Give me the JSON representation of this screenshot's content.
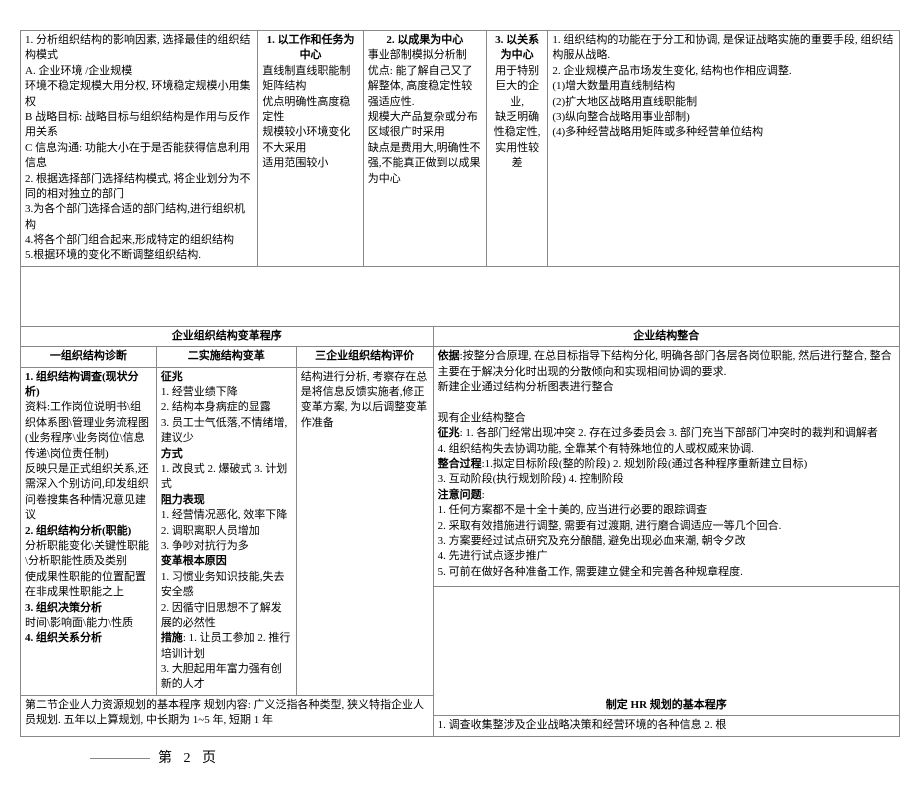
{
  "row1": {
    "c1": "1. 分析组织结构的影响因素, 选择最佳的组织结构模式\n    A. 企业环境   /企业规模\n环境不稳定规模大用分权, 环境稳定规模小用集权\nB 战略目标: 战略目标与组织结构是作用与反作用关系\nC 信息沟通: 功能大小在于是否能获得信息利用信息\n2. 根据选择部门选择结构模式, 将企业划分为不同的相对独立的部门\n3.为各个部门选择合适的部门结构,进行组织机构\n4.将各个部门组合起来,形成特定的组织结构\n5.根据环境的变化不断调整组织结构.",
    "c2_title": "1. 以工作和任务为中心",
    "c2_body": "直线制直线职能制矩阵结构\n优点明确性高度稳定性\n规模较小环境变化不大采用\n适用范围较小",
    "c3_title": "2. 以成果为中心",
    "c3_body": "事业部制模拟分析制\n优点: 能了解自己又了解整体, 高度稳定性较强适应性.\n规模大产品复杂或分布区域很广时采用\n缺点是费用大,明确性不强,不能真正做到以成果为中心",
    "c4_title": "3. 以关系为中心",
    "c4_body": "用于特别巨大的企业,\n缺乏明确性稳定性,实用性较差",
    "c5": "1. 组织结构的功能在于分工和协调, 是保证战略实施的重要手段, 组织结构服从战略.\n2. 企业规模产品市场发生变化, 结构也作相应调整.\n(1)增大数量用直线制结构\n(2)扩大地区战略用直线职能制\n(3)纵向整合战略用事业部制)\n(4)多种经营战略用矩阵或多种经营单位结构"
  },
  "sec2": {
    "left_title": "企业组织结构变革程序",
    "right_title": "企业结构整合",
    "th1": "一组织结构诊断",
    "th2": "二实施结构变革",
    "th3": "三企业组织结构评价",
    "col1": "1. 组织结构调查(现状分析)\n资料:工作岗位说明书\\组织体系图\\管理业务流程图(业务程序\\业务岗位\\信息传递\\岗位责任制)\n反映只是正式组织关系,还需深入个别访问,印发组织问卷搜集各种情况意见建议\n2. 组织结构分析(职能)\n分析职能变化\\关键性职能\\分析职能性质及类别\n使成果性职能的位置配置在非成果性职能之上\n3. 组织决策分析\n时间\\影响面\\能力\\性质\n4. 组织关系分析",
    "col1_bold": [
      "1. 组织结构调查(现状分析)",
      "2. 组织结构分析(职能)",
      "3. 组织决策分析",
      "4. 组织关系分析"
    ],
    "col2": "征兆\n1. 经营业绩下降\n2. 结构本身病症的显露\n3. 员工士气低落,不情绪增,建议少\n方式\n1. 改良式 2. 爆破式 3. 计划式\n阻力表现\n1. 经营情况恶化, 效率下降\n2. 调职离职人员增加\n3. 争吵对抗行为多\n变革根本原因\n1. 习惯业务知识技能,失去安全感\n2. 因循守旧思想不了解发展的必然性\n措施: 1. 让员工参加 2. 推行培训计划\n3. 大胆起用年富力强有创新的人才",
    "col2_bold": [
      "征兆",
      "方式",
      "阻力表现",
      "变革根本原因",
      "措施"
    ],
    "col3": "结构进行分析, 考察存在总是将信息反馈实施者,修正变革方案, 为以后调整变革作准备",
    "right_body": "依据:按整分合原理, 在总目标指导下结构分化, 明确各部门各层各岗位职能, 然后进行整合, 整合主要在于解决分化时出现的分散倾向和实现相间协调的要求.\n新建企业通过结构分析图表进行整合\n\n现有企业结构整合\n征兆: 1. 各部门经常出现冲突   2. 存在过多委员会   3. 部门充当下部部门冲突时的裁判和调解者\n4. 组织结构失去协调功能, 全靠某个有特殊地位的人或权威来协调.\n整合过程:1.拟定目标阶段(整的阶段)  2. 规划阶段(通过各种程序重新建立目标)\n3. 互动阶段(执行规划阶段)  4. 控制阶段\n注意问题:\n1. 任何方案都不是十全十美的, 应当进行必要的跟踪调查\n2. 采取有效措施进行调整, 需要有过渡期, 进行磨合调适应一等几个回合.\n3. 方案要经过试点研究及充分酿醋, 避免出现必血来潮, 朝令夕改\n4. 先进行试点逐步推广\n5. 可前在做好各种准备工作, 需要建立健全和完善各种规章程度.",
    "right_bold": [
      "依据",
      "征兆",
      "整合过程",
      "注意问题"
    ]
  },
  "row3": {
    "left": "第二节企业人力资源规划的基本程序 规划内容: 广义泛指各种类型, 狭义特指企业人员规划. 五年以上算规划, 中长期为 1~5 年, 短期 1 年",
    "hr_title": "制定 HR 规划的基本程序",
    "hr_body": "1. 调查收集整涉及企业战略决策和经营环境的各种信息 2. 根"
  },
  "page": "第 2 页"
}
